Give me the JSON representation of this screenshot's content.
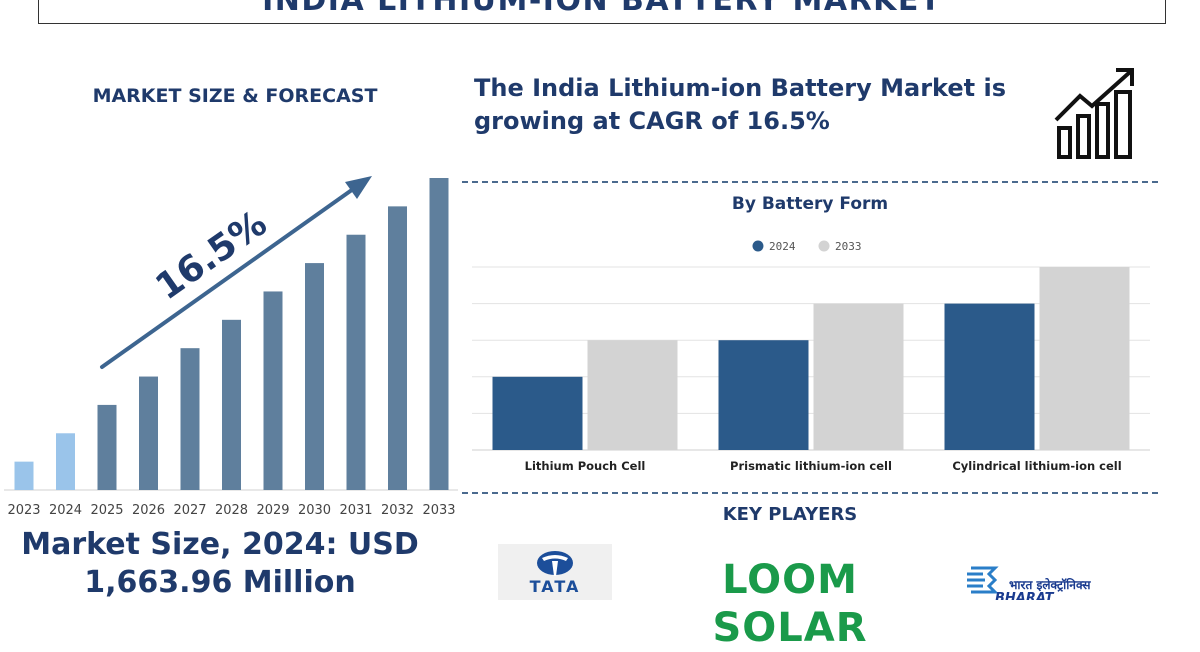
{
  "title": "INDIA LITHIUM-ION BATTERY MARKET",
  "left_heading": "MARKET SIZE & FORECAST",
  "cagr_label": "16.5%",
  "market_size_line1": "Market Size, 2024: USD",
  "market_size_line2": "1,663.96 Million",
  "headline_line1": "The India Lithium-ion Battery Market is",
  "headline_line2": "growing at CAGR of 16.5%",
  "key_players_heading": "KEY PLAYERS",
  "logos": {
    "tata": "TATA",
    "loom": "LOOM SOLAR",
    "bel_hindi": "भारत इलेक्ट्रॉनिक्स",
    "bel_english": "BHARAT ELECTRONICS"
  },
  "colors": {
    "navy": "#1f3a6b",
    "bar_main": "#5f7f9d",
    "bar_highlight": "#9ac4ea",
    "series_2024": "#2b5a8a",
    "series_2033": "#d3d3d3",
    "arrow": "#3d6590"
  },
  "chart_data": [
    {
      "type": "bar",
      "title": "MARKET SIZE & FORECAST",
      "categories": [
        "2023",
        "2024",
        "2025",
        "2026",
        "2027",
        "2028",
        "2029",
        "2030",
        "2031",
        "2032",
        "2033"
      ],
      "values": [
        1,
        2,
        3,
        4,
        5,
        6,
        7,
        8,
        9,
        10,
        11
      ],
      "highlight_categories": [
        "2023",
        "2024"
      ],
      "annotation": "16.5%",
      "xlabel": "",
      "ylabel": "",
      "ylim": [
        0,
        11
      ]
    },
    {
      "type": "bar",
      "title": "By Battery Form",
      "categories": [
        "Lithium Pouch Cell",
        "Prismatic lithium-ion cell",
        "Cylindrical lithium-ion cell"
      ],
      "series": [
        {
          "name": "2024",
          "values": [
            2,
            3,
            4
          ]
        },
        {
          "name": "2033",
          "values": [
            3,
            4,
            5
          ]
        }
      ],
      "ylim": [
        0,
        5
      ],
      "grid": true,
      "legend": "top-center"
    }
  ]
}
